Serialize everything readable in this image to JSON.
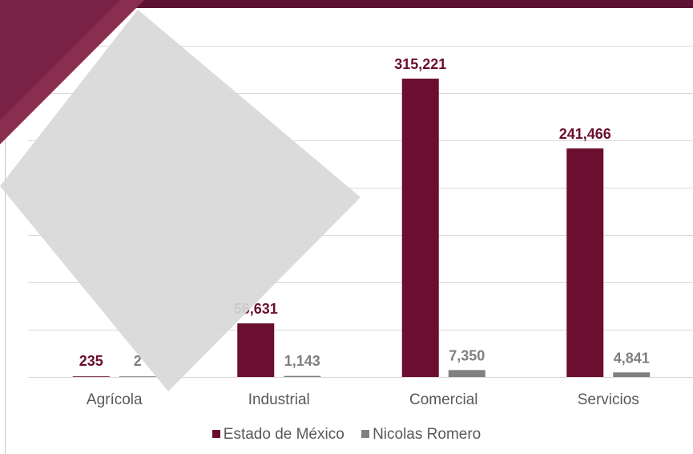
{
  "chart_data": {
    "type": "bar",
    "categories": [
      "Agrícola",
      "Industrial",
      "Comercial",
      "Servicios"
    ],
    "series": [
      {
        "name": "Estado de México",
        "values": [
          235,
          56631,
          315221,
          241466
        ],
        "labels": [
          "235",
          "56,631",
          "315,221",
          "241,466"
        ],
        "color": "#6b0f30"
      },
      {
        "name": "Nicolas Romero",
        "values": [
          2,
          1143,
          7350,
          4841
        ],
        "labels": [
          "2",
          "1,143",
          "7,350",
          "4,841"
        ],
        "color": "#808080"
      }
    ],
    "ylim": [
      0,
      350000
    ],
    "y_gridlines": [
      0,
      50000,
      100000,
      150000,
      200000,
      250000,
      300000,
      350000
    ],
    "grid": true,
    "legend_position": "bottom",
    "title": "",
    "xlabel": "",
    "ylabel": ""
  },
  "colors": {
    "band": "#5e1233",
    "grid": "#d9d9d9",
    "tick_label": "#595959"
  }
}
